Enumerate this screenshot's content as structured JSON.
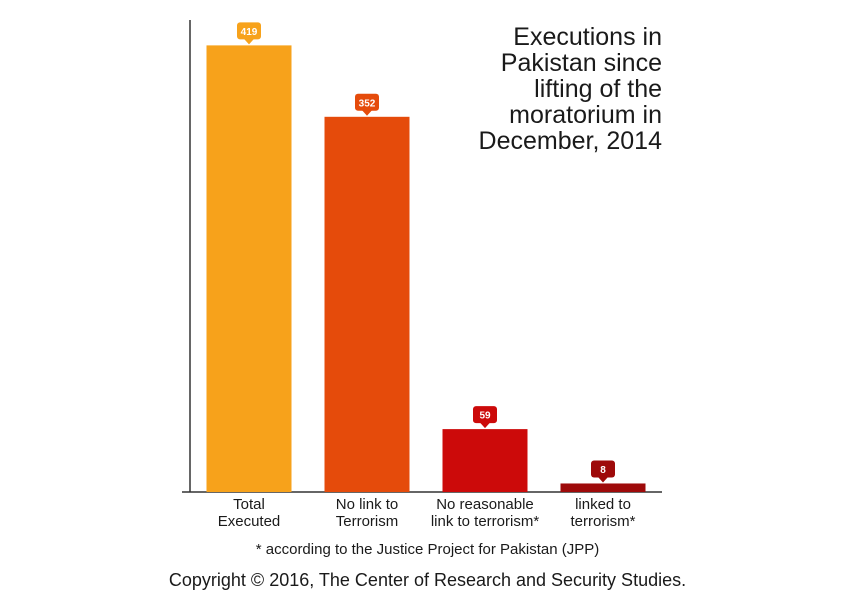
{
  "chart_data": {
    "type": "bar",
    "title_lines": [
      "Executions in",
      "Pakistan since",
      "lifting of the",
      "moratorium in",
      "December, 2014"
    ],
    "categories": [
      [
        "Total",
        "Executed"
      ],
      [
        "No link to",
        "Terrorism"
      ],
      [
        "No reasonable",
        "link to terrorism*"
      ],
      [
        "linked to",
        "terrorism*"
      ]
    ],
    "values": [
      419,
      352,
      59,
      8
    ],
    "bar_colors": [
      "#F7A21B",
      "#E54B0B",
      "#CC0A0A",
      "#9E0A0A"
    ],
    "ylim": [
      0,
      440
    ],
    "xlabel": "",
    "ylabel": "",
    "grid": false,
    "legend": "none"
  },
  "footnote": "* according to the Justice Project for Pakistan (JPP)",
  "copyright": "Copyright © 2016, The Center of Research and Security Studies."
}
